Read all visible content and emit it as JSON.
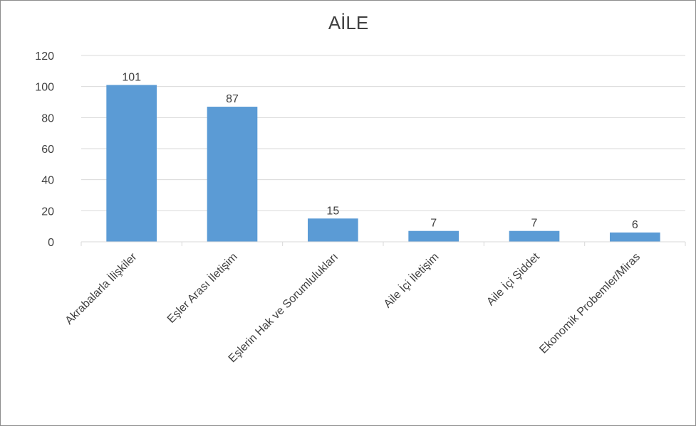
{
  "chart_data": {
    "type": "bar",
    "title": "AİLE",
    "xlabel": "",
    "ylabel": "",
    "categories": [
      "Akrabalarla İlişkiler",
      "Eşler Arası İletişim",
      "Eşlerin Hak ve Sorumlulukları",
      "Aile İçi İletişim",
      "Aile İçi Şiddet",
      "Ekonomik Probemler/Miras"
    ],
    "values": [
      101,
      87,
      15,
      7,
      7,
      6
    ],
    "ylim": [
      0,
      120
    ],
    "yticks": [
      0,
      20,
      40,
      60,
      80,
      100,
      120
    ],
    "grid": true,
    "legend": "none",
    "bar_color": "#5b9bd5",
    "grid_color": "#d9d9d9"
  }
}
